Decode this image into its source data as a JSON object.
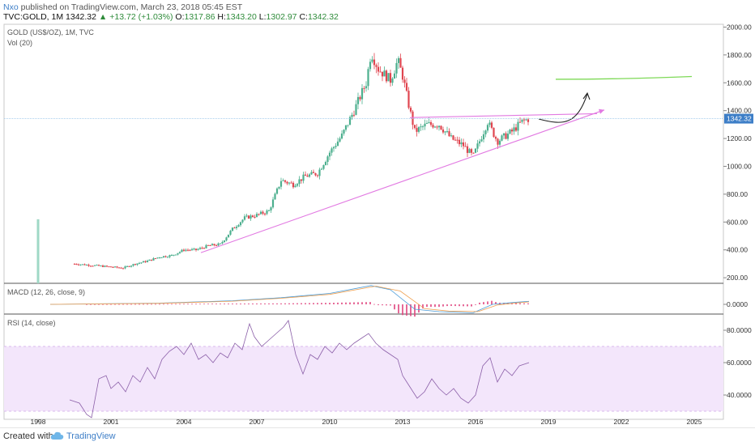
{
  "header": {
    "author": "Nxo",
    "published": "published on TradingView.com, March 23, 2018 05:45 EST",
    "symbol": "TVC:GOLD, 1M",
    "last": "1342.32",
    "change": "+13.72 (+1.03%)",
    "open_label": "O:",
    "open": "1317.86",
    "high_label": "H:",
    "high": "1343.20",
    "low_label": "L:",
    "low": "1302.97",
    "close_label": "C:",
    "close": "1342.32"
  },
  "footer": {
    "created": "Created with",
    "brand": "TradingView"
  },
  "icons": {
    "up_arrow": "triangle-up-icon",
    "logo": "tradingview-cloud-icon"
  },
  "colors": {
    "bull": "#4caf8e",
    "bear": "#e0454f",
    "trend": "#e27ae2",
    "target": "#7ed957",
    "macd": "#4a9bd8",
    "signal": "#f0a050",
    "hist": "#e0457f",
    "rsi": "#8b5fa8",
    "rsi_band": "#f3e6fb",
    "price_badge": "#3d7ec7"
  },
  "chart_data": [
    {
      "type": "candlestick",
      "title": "GOLD (US$/OZ), 1M, TVC",
      "subtitle": "Vol (20)",
      "x_ticks": [
        "1998",
        "2001",
        "2004",
        "2007",
        "2010",
        "2013",
        "2016",
        "2019",
        "2022",
        "2025"
      ],
      "y_ticks": [
        200,
        400,
        600,
        800,
        1000,
        1200,
        1400,
        1600,
        1800,
        2000
      ],
      "y_tick_labels": [
        "200.00",
        "400.00",
        "600.00",
        "800.00",
        "1000.00",
        "1200.00",
        "1400.00",
        "1600.00",
        "1800.00",
        "2000.00"
      ],
      "ylim": [
        160,
        2020
      ],
      "xlim": [
        1996.6,
        2026.2
      ],
      "last_price_label": "1342.32",
      "price_path": [
        [
          1999.5,
          300
        ],
        [
          2000.5,
          285
        ],
        [
          2001.5,
          270
        ],
        [
          2002.0,
          300
        ],
        [
          2002.5,
          320
        ],
        [
          2003.0,
          350
        ],
        [
          2003.5,
          360
        ],
        [
          2004.0,
          400
        ],
        [
          2004.5,
          400
        ],
        [
          2005.0,
          430
        ],
        [
          2005.5,
          440
        ],
        [
          2006.0,
          550
        ],
        [
          2006.5,
          630
        ],
        [
          2007.0,
          650
        ],
        [
          2007.5,
          680
        ],
        [
          2008.0,
          900
        ],
        [
          2008.5,
          870
        ],
        [
          2009.0,
          930
        ],
        [
          2009.5,
          950
        ],
        [
          2010.0,
          1100
        ],
        [
          2010.5,
          1220
        ],
        [
          2011.0,
          1400
        ],
        [
          2011.5,
          1600
        ],
        [
          2011.7,
          1820
        ],
        [
          2012.0,
          1700
        ],
        [
          2012.5,
          1620
        ],
        [
          2012.8,
          1760
        ],
        [
          2013.0,
          1650
        ],
        [
          2013.3,
          1400
        ],
        [
          2013.5,
          1250
        ],
        [
          2014.0,
          1300
        ],
        [
          2014.5,
          1300
        ],
        [
          2015.0,
          1200
        ],
        [
          2015.5,
          1150
        ],
        [
          2015.9,
          1070
        ],
        [
          2016.5,
          1320
        ],
        [
          2016.9,
          1180
        ],
        [
          2017.5,
          1250
        ],
        [
          2017.9,
          1320
        ],
        [
          2018.2,
          1342
        ]
      ],
      "volume_spike": {
        "x": 1998.0,
        "y_range": [
          160,
          620
        ]
      },
      "trendlines": [
        {
          "from": [
            2004.7,
            380
          ],
          "to": [
            2021.3,
            1405
          ]
        },
        {
          "from": [
            2013.3,
            1350
          ],
          "to": [
            2021.0,
            1378
          ]
        }
      ],
      "projection_curve": [
        [
          2018.6,
          1340
        ],
        [
          2019.6,
          1340
        ],
        [
          2020.5,
          1470
        ],
        [
          2020.6,
          1520
        ]
      ],
      "target_line": {
        "from": [
          2019.3,
          1625
        ],
        "to": [
          2024.9,
          1645
        ]
      }
    },
    {
      "type": "line",
      "title": "MACD (12, 26, close, 9)",
      "y_tick_labels": [
        "0.0000"
      ],
      "series": [
        {
          "name": "",
          "points": [
            [
              1998.5,
              0
            ],
            [
              2003,
              10
            ],
            [
              2006,
              30
            ],
            [
              2008,
              55
            ],
            [
              2010,
              90
            ],
            [
              2011.7,
              155
            ],
            [
              2012.5,
              120
            ],
            [
              2013.5,
              -40
            ],
            [
              2014.5,
              -60
            ],
            [
              2015.9,
              -70
            ],
            [
              2016.7,
              0
            ],
            [
              2017.5,
              15
            ],
            [
              2018.2,
              25
            ]
          ]
        },
        {
          "name": "",
          "points": [
            [
              1998.5,
              0
            ],
            [
              2003,
              8
            ],
            [
              2006,
              26
            ],
            [
              2008,
              50
            ],
            [
              2010,
              82
            ],
            [
              2011.9,
              150
            ],
            [
              2012.9,
              110
            ],
            [
              2013.9,
              -35
            ],
            [
              2014.9,
              -55
            ],
            [
              2016.1,
              -60
            ],
            [
              2016.9,
              -5
            ],
            [
              2017.7,
              12
            ],
            [
              2018.2,
              20
            ]
          ]
        }
      ]
    },
    {
      "type": "line",
      "title": "RSI (14, close)",
      "y_ticks": [
        40,
        60,
        80
      ],
      "y_tick_labels": [
        "40.0000",
        "60.0000",
        "80.0000"
      ],
      "ylim": [
        25,
        90
      ],
      "band": [
        30,
        70
      ],
      "series": [
        {
          "name": "",
          "points": [
            [
              1999.3,
              37
            ],
            [
              1999.7,
              35
            ],
            [
              2000.0,
              28
            ],
            [
              2000.2,
              26
            ],
            [
              2000.5,
              50
            ],
            [
              2000.8,
              52
            ],
            [
              2001.0,
              44
            ],
            [
              2001.3,
              48
            ],
            [
              2001.6,
              42
            ],
            [
              2001.9,
              52
            ],
            [
              2002.2,
              48
            ],
            [
              2002.5,
              57
            ],
            [
              2002.8,
              50
            ],
            [
              2003.1,
              62
            ],
            [
              2003.4,
              67
            ],
            [
              2003.7,
              70
            ],
            [
              2004.0,
              65
            ],
            [
              2004.3,
              72
            ],
            [
              2004.6,
              62
            ],
            [
              2004.9,
              65
            ],
            [
              2005.2,
              60
            ],
            [
              2005.5,
              66
            ],
            [
              2005.8,
              63
            ],
            [
              2006.1,
              72
            ],
            [
              2006.4,
              68
            ],
            [
              2006.7,
              84
            ],
            [
              2006.9,
              76
            ],
            [
              2007.2,
              70
            ],
            [
              2007.5,
              74
            ],
            [
              2007.8,
              78
            ],
            [
              2008.1,
              82
            ],
            [
              2008.3,
              86
            ],
            [
              2008.6,
              65
            ],
            [
              2008.9,
              53
            ],
            [
              2009.2,
              65
            ],
            [
              2009.5,
              62
            ],
            [
              2009.8,
              70
            ],
            [
              2010.1,
              66
            ],
            [
              2010.4,
              72
            ],
            [
              2010.7,
              68
            ],
            [
              2011.0,
              72
            ],
            [
              2011.3,
              75
            ],
            [
              2011.6,
              78
            ],
            [
              2011.9,
              72
            ],
            [
              2012.2,
              68
            ],
            [
              2012.5,
              65
            ],
            [
              2012.8,
              62
            ],
            [
              2013.0,
              52
            ],
            [
              2013.3,
              45
            ],
            [
              2013.6,
              38
            ],
            [
              2013.9,
              42
            ],
            [
              2014.2,
              50
            ],
            [
              2014.5,
              44
            ],
            [
              2014.8,
              40
            ],
            [
              2015.1,
              44
            ],
            [
              2015.4,
              38
            ],
            [
              2015.7,
              35
            ],
            [
              2016.0,
              40
            ],
            [
              2016.3,
              58
            ],
            [
              2016.6,
              63
            ],
            [
              2016.9,
              48
            ],
            [
              2017.2,
              56
            ],
            [
              2017.5,
              52
            ],
            [
              2017.8,
              58
            ],
            [
              2018.2,
              60
            ]
          ]
        }
      ]
    }
  ]
}
